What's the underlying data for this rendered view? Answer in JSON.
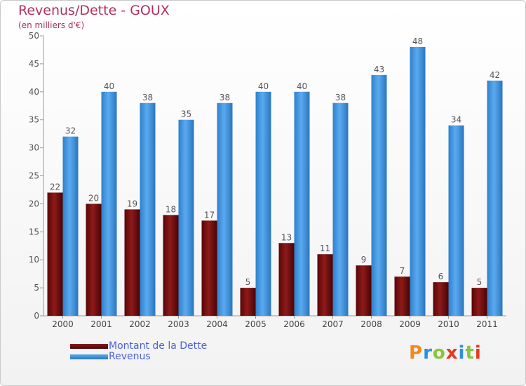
{
  "title": "Revenus/Dette - GOUX",
  "subtitle": "(en milliers d'€)",
  "brand": {
    "logo_text": "Proxiti",
    "colors": [
      "#f08a1e",
      "#2e8fe0",
      "#8ac43f",
      "#e8391e",
      "#2e8fe0",
      "#8ac43f",
      "#e8391e"
    ]
  },
  "chart_data": {
    "type": "bar",
    "categories": [
      "2000",
      "2001",
      "2002",
      "2003",
      "2004",
      "2005",
      "2006",
      "2007",
      "2008",
      "2009",
      "2010",
      "2011"
    ],
    "series": [
      {
        "name": "Montant de la Dette",
        "color": "#7a0f0f",
        "values": [
          22,
          20,
          19,
          18,
          17,
          5,
          13,
          11,
          9,
          7,
          6,
          5
        ]
      },
      {
        "name": "Revenus",
        "color": "#3b8fd8",
        "values": [
          32,
          40,
          38,
          35,
          38,
          40,
          40,
          38,
          43,
          48,
          34,
          42
        ]
      }
    ],
    "ylim": [
      0,
      50
    ],
    "yticks": [
      0,
      5,
      10,
      15,
      20,
      25,
      30,
      35,
      40,
      45,
      50
    ],
    "grid": false,
    "legend": "bottom-left"
  }
}
